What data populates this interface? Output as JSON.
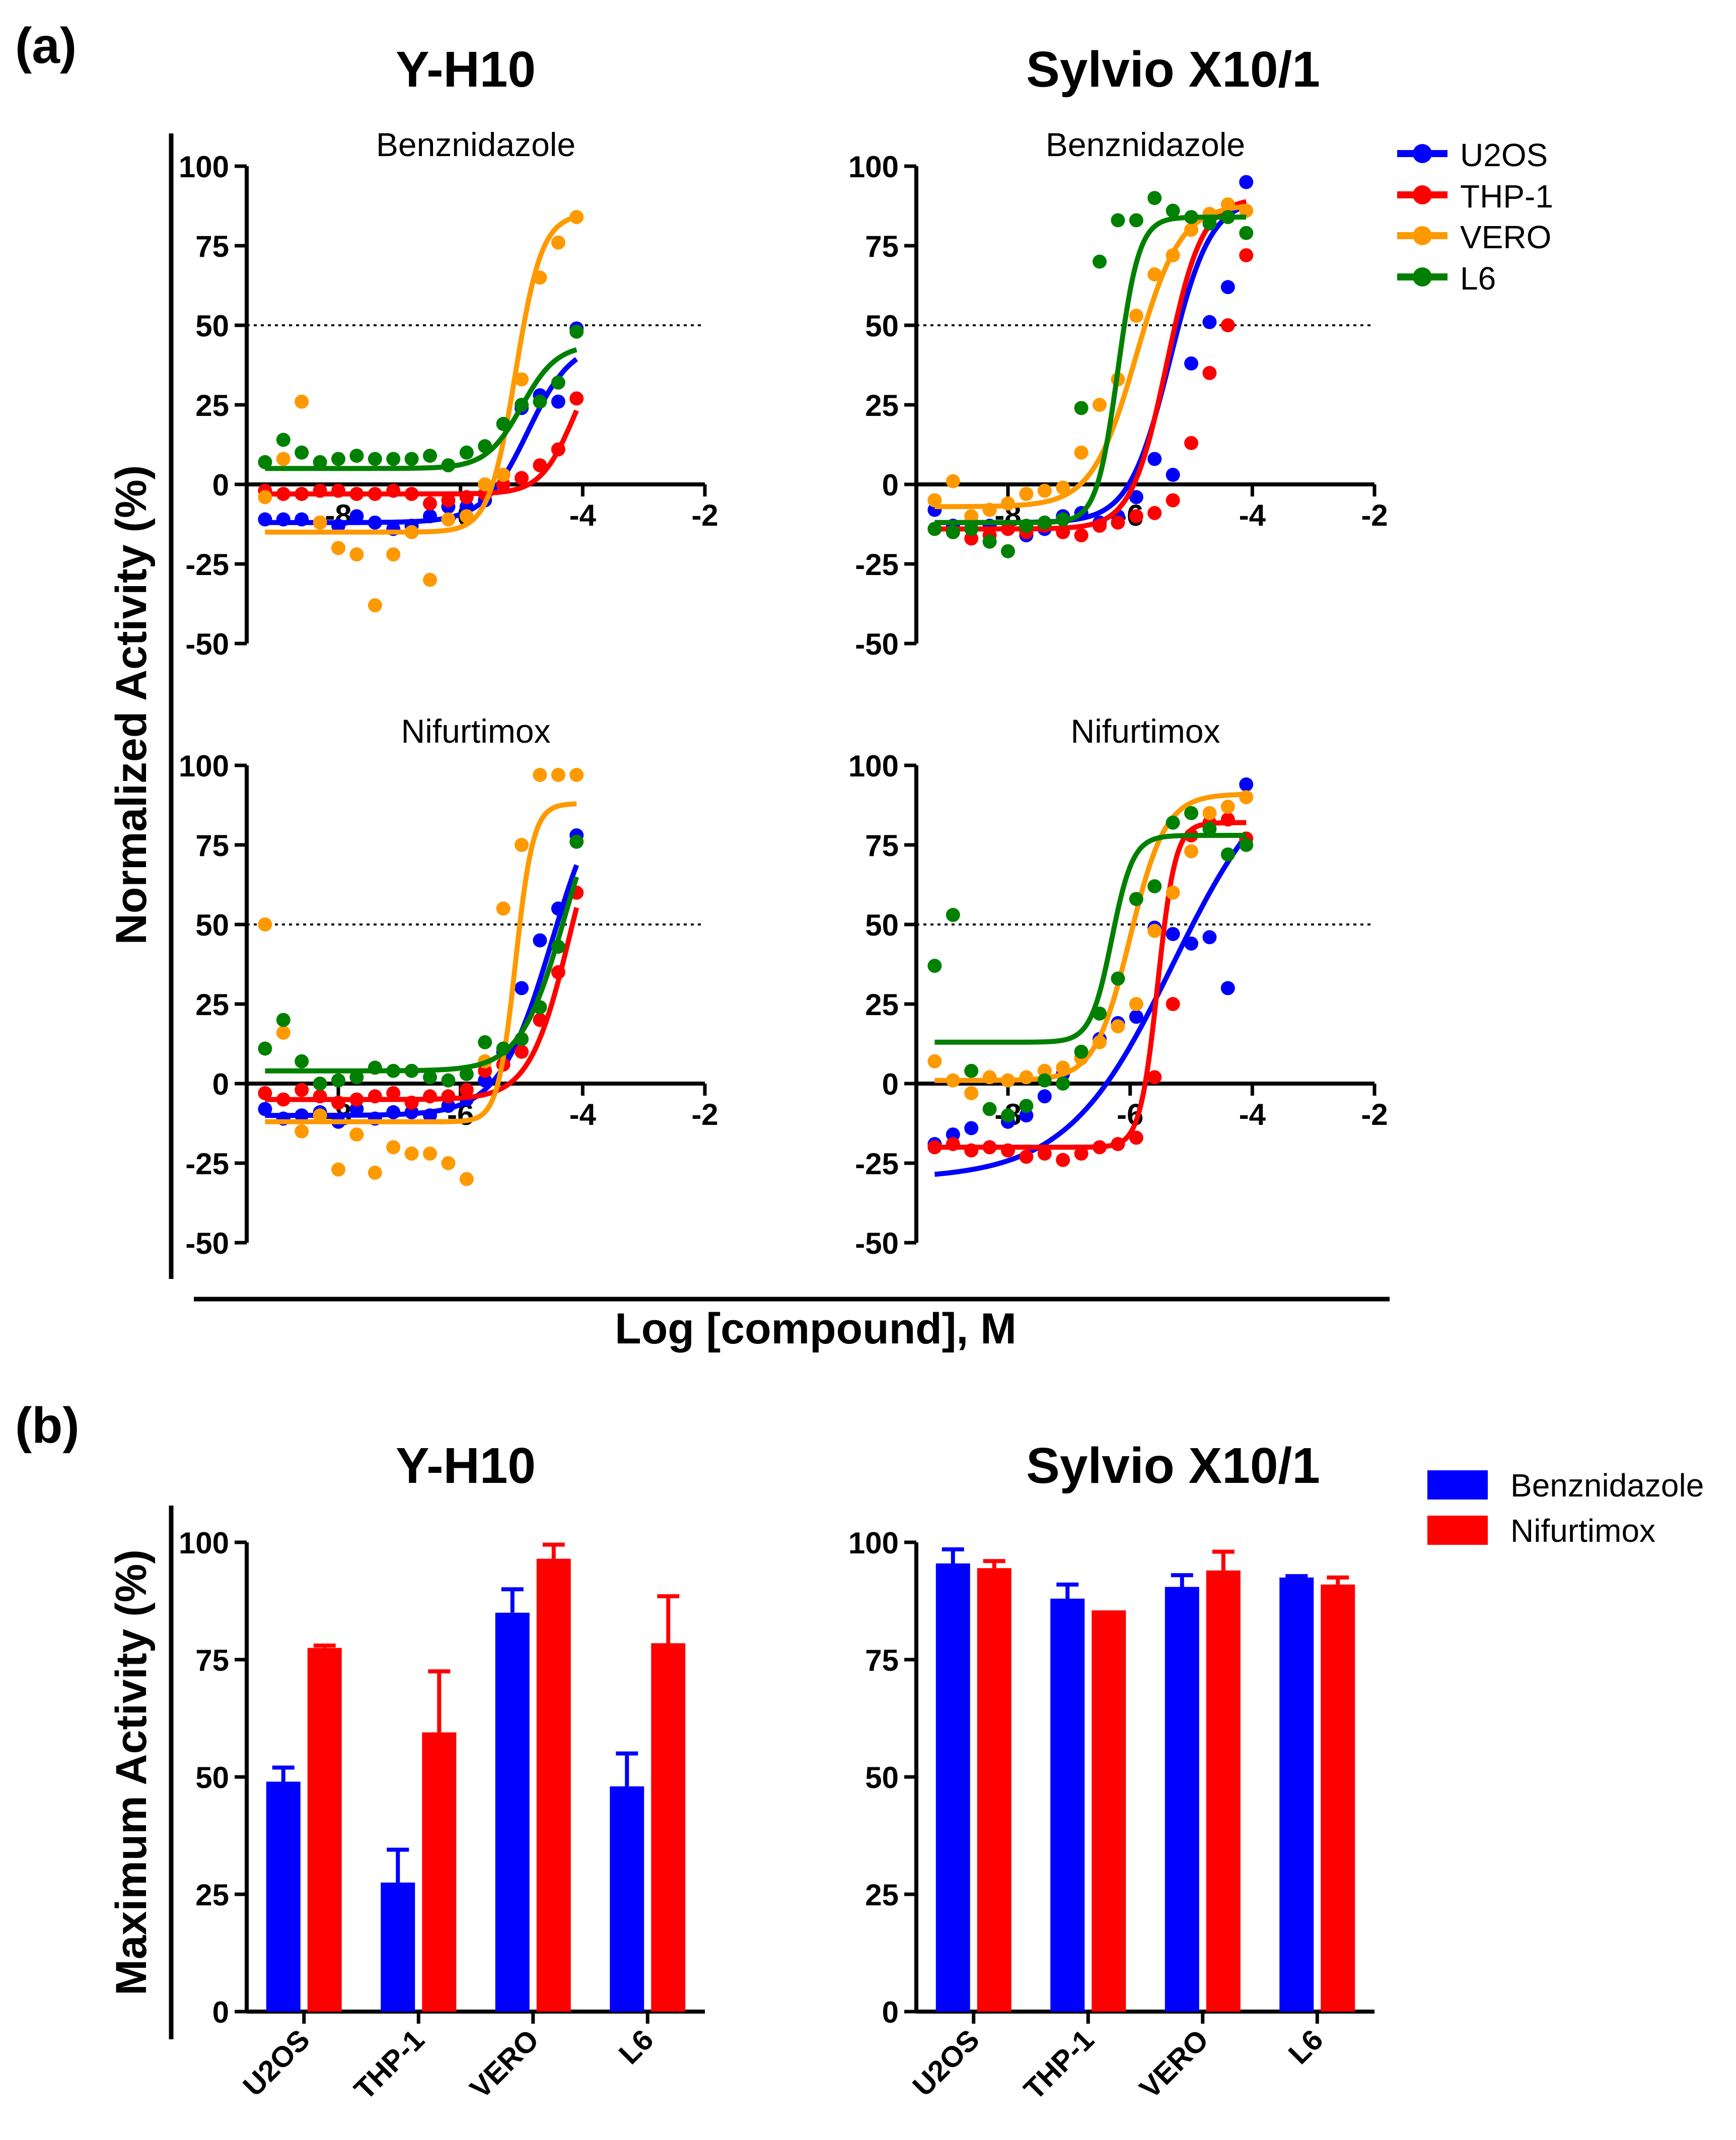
{
  "panel_a": {
    "label": "(a)",
    "col_titles": [
      "Y-H10",
      "Sylvio X10/1"
    ],
    "ylabel": "Normalized Activity (%)",
    "xlabel": "Log [compound], M",
    "reference_line": 50,
    "legend": [
      {
        "name": "U2OS",
        "color": "#0000ff"
      },
      {
        "name": "THP-1",
        "color": "#ff0000"
      },
      {
        "name": "VERO",
        "color": "#ff9900"
      },
      {
        "name": "L6",
        "color": "#008000"
      }
    ]
  },
  "panel_b": {
    "label": "(b)",
    "col_titles": [
      "Y-H10",
      "Sylvio X10/1"
    ],
    "ylabel": "Maximum Activity (%)",
    "legend": [
      {
        "name": "Benznidazole",
        "color": "#0000ff"
      },
      {
        "name": "Nifurtimox",
        "color": "#ff0000"
      }
    ]
  },
  "chart_data": [
    {
      "type": "scatter",
      "panel": "a",
      "strain": "Y-H10",
      "title": "Benznidazole",
      "xlim": [
        -9.5,
        -2
      ],
      "ylim": [
        -50,
        100
      ],
      "xticks": [
        -8,
        -6,
        -4,
        -2
      ],
      "yticks": [
        -50,
        -25,
        0,
        25,
        50,
        75,
        100
      ],
      "x": [
        -9.2,
        -8.9,
        -8.6,
        -8.3,
        -8.0,
        -7.7,
        -7.4,
        -7.1,
        -6.8,
        -6.5,
        -6.2,
        -5.9,
        -5.6,
        -5.3,
        -5.0,
        -4.7,
        -4.4,
        -4.1
      ],
      "series": [
        {
          "name": "U2OS",
          "color": "#0000ff",
          "values": [
            -11,
            -11,
            -11,
            -12,
            -13,
            -10,
            -12,
            -14,
            -13,
            -10,
            -7,
            -7,
            -5,
            3,
            24,
            28,
            26,
            49
          ],
          "fit": {
            "bottom": -12,
            "top": 45,
            "logec50": -4.9,
            "hill": 1.2
          }
        },
        {
          "name": "THP-1",
          "color": "#ff0000",
          "values": [
            -2,
            -3,
            -3,
            -2,
            -2,
            -3,
            -3,
            -2,
            -3,
            -6,
            -5,
            -4,
            -3,
            0,
            2,
            6,
            11,
            27
          ],
          "fit": {
            "bottom": -3,
            "top": 45,
            "logec50": -4.15,
            "hill": 1.6
          }
        },
        {
          "name": "VERO",
          "color": "#ff9900",
          "values": [
            -4,
            8,
            26,
            -12,
            -20,
            -22,
            -38,
            -22,
            -15,
            -30,
            -11,
            -10,
            0,
            3,
            33,
            65,
            76,
            84
          ],
          "fit": {
            "bottom": -15,
            "top": 85,
            "logec50": -5.1,
            "hill": 2.0
          }
        },
        {
          "name": "L6",
          "color": "#008000",
          "values": [
            7,
            14,
            10,
            7,
            8,
            9,
            8,
            8,
            8,
            9,
            6,
            10,
            12,
            19,
            25,
            26,
            32,
            48
          ],
          "fit": {
            "bottom": 5,
            "top": 44,
            "logec50": -5.0,
            "hill": 1.5
          }
        }
      ]
    },
    {
      "type": "scatter",
      "panel": "a",
      "strain": "Sylvio X10/1",
      "title": "Benznidazole",
      "xlim": [
        -9.5,
        -2
      ],
      "ylim": [
        -50,
        100
      ],
      "xticks": [
        -8,
        -6,
        -4,
        -2
      ],
      "yticks": [
        -50,
        -25,
        0,
        25,
        50,
        75,
        100
      ],
      "x": [
        -9.2,
        -8.9,
        -8.6,
        -8.3,
        -8.0,
        -7.7,
        -7.4,
        -7.1,
        -6.8,
        -6.5,
        -6.2,
        -5.9,
        -5.6,
        -5.3,
        -5.0,
        -4.7,
        -4.4,
        -4.1
      ],
      "series": [
        {
          "name": "U2OS",
          "color": "#0000ff",
          "values": [
            -8,
            -13,
            -12,
            -13,
            -14,
            -16,
            -14,
            -10,
            -9,
            -12,
            -10,
            -4,
            8,
            3,
            38,
            51,
            62,
            95
          ],
          "fit": {
            "bottom": -12,
            "top": 90,
            "logec50": -5.35,
            "hill": 1.3
          }
        },
        {
          "name": "THP-1",
          "color": "#ff0000",
          "values": [
            -14,
            -15,
            -17,
            -16,
            -14,
            -15,
            -13,
            -15,
            -16,
            -13,
            -12,
            -10,
            -9,
            -5,
            13,
            35,
            50,
            72
          ],
          "fit": {
            "bottom": -14,
            "top": 90,
            "logec50": -5.4,
            "hill": 1.5
          }
        },
        {
          "name": "VERO",
          "color": "#ff9900",
          "values": [
            -5,
            1,
            -10,
            -8,
            -6,
            -3,
            -2,
            -1,
            10,
            25,
            33,
            53,
            66,
            72,
            80,
            85,
            88,
            86
          ],
          "fit": {
            "bottom": -7,
            "top": 88,
            "logec50": -5.9,
            "hill": 1.2
          }
        },
        {
          "name": "L6",
          "color": "#008000",
          "values": [
            -14,
            -15,
            -14,
            -18,
            -21,
            -13,
            -12,
            -11,
            24,
            70,
            83,
            83,
            90,
            86,
            84,
            82,
            84,
            79
          ],
          "fit": {
            "bottom": -12,
            "top": 84,
            "logec50": -6.2,
            "hill": 2.5
          }
        }
      ]
    },
    {
      "type": "scatter",
      "panel": "a",
      "strain": "Y-H10",
      "title": "Nifurtimox",
      "xlim": [
        -9.5,
        -2
      ],
      "ylim": [
        -50,
        100
      ],
      "xticks": [
        -8,
        -6,
        -4,
        -2
      ],
      "yticks": [
        -50,
        -25,
        0,
        25,
        50,
        75,
        100
      ],
      "x": [
        -9.2,
        -8.9,
        -8.6,
        -8.3,
        -8.0,
        -7.7,
        -7.4,
        -7.1,
        -6.8,
        -6.5,
        -6.2,
        -5.9,
        -5.6,
        -5.3,
        -5.0,
        -4.7,
        -4.4,
        -4.1
      ],
      "series": [
        {
          "name": "U2OS",
          "color": "#0000ff",
          "values": [
            -8,
            -11,
            -10,
            -9,
            -12,
            -8,
            -11,
            -9,
            -9,
            -10,
            -7,
            -5,
            1,
            10,
            30,
            45,
            55,
            78
          ],
          "fit": {
            "bottom": -10,
            "top": 100,
            "logec50": -4.5,
            "hill": 1.0
          }
        },
        {
          "name": "THP-1",
          "color": "#ff0000",
          "values": [
            -3,
            -5,
            -2,
            -4,
            -6,
            -5,
            -4,
            -3,
            -6,
            -4,
            -4,
            -2,
            4,
            6,
            10,
            20,
            35,
            60
          ],
          "fit": {
            "bottom": -5,
            "top": 100,
            "logec50": -4.2,
            "hill": 1.3
          }
        },
        {
          "name": "VERO",
          "color": "#ff9900",
          "values": [
            50,
            16,
            -15,
            -10,
            -27,
            -16,
            -28,
            -20,
            -22,
            -22,
            -25,
            -30,
            7,
            55,
            75,
            97,
            97,
            97
          ],
          "fit": {
            "bottom": -12,
            "top": 88,
            "logec50": -5.1,
            "hill": 3.0
          }
        },
        {
          "name": "L6",
          "color": "#008000",
          "values": [
            11,
            20,
            7,
            0,
            1,
            2,
            5,
            4,
            4,
            2,
            1,
            3,
            13,
            11,
            14,
            24,
            43,
            76
          ],
          "fit": {
            "bottom": 4,
            "top": 100,
            "logec50": -4.3,
            "hill": 1.2
          }
        }
      ]
    },
    {
      "type": "scatter",
      "panel": "a",
      "strain": "Sylvio X10/1",
      "title": "Nifurtimox",
      "xlim": [
        -9.5,
        -2
      ],
      "ylim": [
        -50,
        100
      ],
      "xticks": [
        -8,
        -6,
        -4,
        -2
      ],
      "yticks": [
        -50,
        -25,
        0,
        25,
        50,
        75,
        100
      ],
      "x": [
        -9.2,
        -8.9,
        -8.6,
        -8.3,
        -8.0,
        -7.7,
        -7.4,
        -7.1,
        -6.8,
        -6.5,
        -6.2,
        -5.9,
        -5.6,
        -5.3,
        -5.0,
        -4.7,
        -4.4,
        -4.1
      ],
      "series": [
        {
          "name": "U2OS",
          "color": "#0000ff",
          "values": [
            -19,
            -16,
            -14,
            -20,
            -12,
            -10,
            -4,
            3,
            8,
            14,
            19,
            21,
            49,
            47,
            44,
            46,
            30,
            94
          ],
          "fit": {
            "bottom": -30,
            "top": 105,
            "logec50": -5.3,
            "hill": 0.5
          }
        },
        {
          "name": "THP-1",
          "color": "#ff0000",
          "values": [
            -20,
            -19,
            -21,
            -20,
            -21,
            -23,
            -22,
            -24,
            -22,
            -20,
            -19,
            -17,
            2,
            25,
            78,
            82,
            83,
            77
          ],
          "fit": {
            "bottom": -20,
            "top": 82,
            "logec50": -5.55,
            "hill": 3.0
          }
        },
        {
          "name": "VERO",
          "color": "#ff9900",
          "values": [
            7,
            1,
            -3,
            2,
            1,
            2,
            4,
            5,
            8,
            13,
            18,
            25,
            48,
            60,
            73,
            85,
            87,
            90
          ],
          "fit": {
            "bottom": 1,
            "top": 91,
            "logec50": -6.0,
            "hill": 1.5
          }
        },
        {
          "name": "L6",
          "color": "#008000",
          "values": [
            37,
            53,
            4,
            -8,
            -10,
            -7,
            1,
            0,
            10,
            22,
            33,
            58,
            62,
            82,
            85,
            80,
            72,
            75
          ],
          "fit": {
            "bottom": 13,
            "top": 78,
            "logec50": -6.3,
            "hill": 2.5
          }
        }
      ]
    },
    {
      "type": "bar",
      "panel": "b",
      "strain": "Y-H10",
      "categories": [
        "U2OS",
        "THP-1",
        "VERO",
        "L6"
      ],
      "ylim": [
        0,
        100
      ],
      "yticks": [
        0,
        25,
        50,
        75,
        100
      ],
      "series": [
        {
          "name": "Benznidazole",
          "color": "#0000ff",
          "values": [
            49,
            27.5,
            85,
            48
          ],
          "errors": [
            3,
            7,
            5,
            7
          ]
        },
        {
          "name": "Nifurtimox",
          "color": "#ff0000",
          "values": [
            77.5,
            59.5,
            96.5,
            78.5
          ],
          "errors": [
            0.5,
            13,
            3,
            10
          ]
        }
      ]
    },
    {
      "type": "bar",
      "panel": "b",
      "strain": "Sylvio X10/1",
      "categories": [
        "U2OS",
        "THP-1",
        "VERO",
        "L6"
      ],
      "ylim": [
        0,
        100
      ],
      "yticks": [
        0,
        25,
        50,
        75,
        100
      ],
      "series": [
        {
          "name": "Benznidazole",
          "color": "#0000ff",
          "values": [
            95.5,
            88,
            90.5,
            92.5
          ],
          "errors": [
            3,
            3,
            2.5,
            0.3
          ]
        },
        {
          "name": "Nifurtimox",
          "color": "#ff0000",
          "values": [
            94.5,
            85.5,
            94,
            91
          ],
          "errors": [
            1.5,
            0,
            4,
            1.5
          ]
        }
      ]
    }
  ]
}
